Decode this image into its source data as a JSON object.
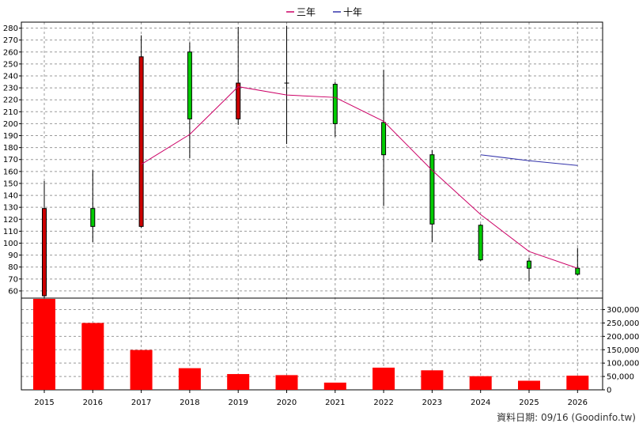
{
  "chart_data": {
    "type": "candlestick",
    "legend": {
      "placement": "top-center",
      "items": [
        {
          "label": "三年",
          "color": "#cc0066"
        },
        {
          "label": "十年",
          "color": "#3333aa"
        }
      ]
    },
    "categories": [
      "2015",
      "2016",
      "2017",
      "2018",
      "2019",
      "2020",
      "2021",
      "2022",
      "2023",
      "2024",
      "2025",
      "2026"
    ],
    "price_axis": {
      "min": 54,
      "max": 285,
      "ticks": [
        60,
        70,
        80,
        90,
        100,
        110,
        120,
        130,
        140,
        150,
        160,
        170,
        180,
        190,
        200,
        210,
        220,
        230,
        240,
        250,
        260,
        270,
        280
      ]
    },
    "candles": [
      {
        "year": "2015",
        "open": 129,
        "close": 56,
        "high": 152,
        "low": 54,
        "color": "#cc0000"
      },
      {
        "year": "2016",
        "open": 114,
        "close": 129,
        "high": 161,
        "low": 101,
        "color": "#00cc00"
      },
      {
        "year": "2017",
        "open": 256,
        "close": 114,
        "high": 274,
        "low": 113,
        "color": "#cc0000"
      },
      {
        "year": "2018",
        "open": 204,
        "close": 260,
        "high": 268,
        "low": 171,
        "color": "#00cc00"
      },
      {
        "year": "2019",
        "open": 234,
        "close": 204,
        "high": 281,
        "low": 199,
        "color": "#cc0000"
      },
      {
        "year": "2020",
        "open": 234,
        "close": 234,
        "high": 282,
        "low": 183,
        "color": "#000000"
      },
      {
        "year": "2021",
        "open": 200,
        "close": 233,
        "high": 235,
        "low": 189,
        "color": "#00cc00"
      },
      {
        "year": "2022",
        "open": 174,
        "close": 201,
        "high": 245,
        "low": 131,
        "color": "#00cc00"
      },
      {
        "year": "2023",
        "open": 116,
        "close": 174,
        "high": 178,
        "low": 101,
        "color": "#00cc00"
      },
      {
        "year": "2024",
        "open": 86,
        "close": 115,
        "high": 116,
        "low": 85,
        "color": "#00cc00"
      },
      {
        "year": "2025",
        "open": 79,
        "close": 85,
        "high": 88,
        "low": 68,
        "color": "#00cc00"
      },
      {
        "year": "2026",
        "open": 74,
        "close": 79,
        "high": 96,
        "low": 73,
        "color": "#00cc00"
      }
    ],
    "series": [
      {
        "name": "三年",
        "color": "#cc0066",
        "points": [
          {
            "year": "2017",
            "value": 166
          },
          {
            "year": "2018",
            "value": 191
          },
          {
            "year": "2019",
            "value": 231
          },
          {
            "year": "2020",
            "value": 224
          },
          {
            "year": "2021",
            "value": 222
          },
          {
            "year": "2022",
            "value": 202
          },
          {
            "year": "2023",
            "value": 161
          },
          {
            "year": "2024",
            "value": 124
          },
          {
            "year": "2025",
            "value": 93
          },
          {
            "year": "2026",
            "value": 79
          }
        ]
      },
      {
        "name": "十年",
        "color": "#3333aa",
        "points": [
          {
            "year": "2024",
            "value": 174
          },
          {
            "year": "2025",
            "value": 169
          },
          {
            "year": "2026",
            "value": 165
          }
        ]
      }
    ],
    "volume_axis": {
      "min": 0,
      "max": 340000,
      "ticks": [
        0,
        50000,
        100000,
        150000,
        200000,
        250000,
        300000
      ],
      "tick_labels": [
        "0",
        "50,000",
        "100,000",
        "150,000",
        "200,000",
        "250,000",
        "300,000"
      ]
    },
    "volumes": [
      {
        "year": "2015",
        "value": 340000
      },
      {
        "year": "2016",
        "value": 250000
      },
      {
        "year": "2017",
        "value": 149000
      },
      {
        "year": "2018",
        "value": 81000
      },
      {
        "year": "2019",
        "value": 59000
      },
      {
        "year": "2020",
        "value": 55000
      },
      {
        "year": "2021",
        "value": 27000
      },
      {
        "year": "2022",
        "value": 83000
      },
      {
        "year": "2023",
        "value": 73000
      },
      {
        "year": "2024",
        "value": 51000
      },
      {
        "year": "2025",
        "value": 34000
      },
      {
        "year": "2026",
        "value": 53000
      }
    ],
    "volume_color": "#ff0000",
    "grid": true
  },
  "footer": {
    "label": "資料日期: 09/16 (Goodinfo.tw)"
  }
}
